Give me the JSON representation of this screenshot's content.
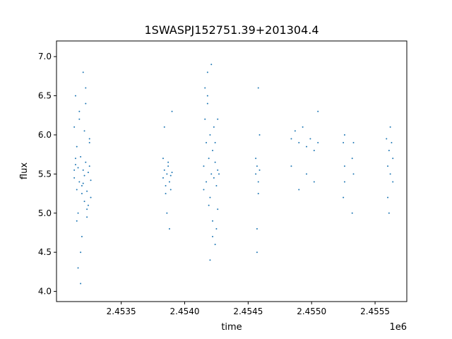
{
  "chart_data": {
    "type": "scatter",
    "title": "1SWASPJ152751.39+201304.4",
    "xlabel": "time",
    "ylabel": "flux",
    "x_offset_label": "1e6",
    "xlim": [
      2.45299,
      2.45575
    ],
    "ylim": [
      3.87,
      7.2
    ],
    "x_ticks": [
      2.4535,
      2.454,
      2.4545,
      2.455,
      2.4555
    ],
    "x_tick_labels": [
      "2.4535",
      "2.4540",
      "2.4545",
      "2.4550",
      "2.4555"
    ],
    "y_ticks": [
      4.0,
      4.5,
      5.0,
      5.5,
      6.0,
      6.5,
      7.0
    ],
    "y_tick_labels": [
      "4.0",
      "4.5",
      "5.0",
      "5.5",
      "6.0",
      "6.5",
      "7.0"
    ],
    "grid": false,
    "legend": "none",
    "marker_color": "#1f77b4",
    "series": [
      {
        "x": [
          2.45313,
          2.45314,
          2.45315,
          2.45316,
          2.45317,
          2.45318,
          2.45319,
          2.4532,
          2.45321,
          2.45322,
          2.45323,
          2.45324,
          2.45325,
          2.45326,
          2.45313,
          2.45315,
          2.45317,
          2.45319,
          2.45321,
          2.45323,
          2.45325,
          2.45314,
          2.45318,
          2.45322,
          2.45326,
          2.45316,
          2.4532,
          2.45324,
          2.45315,
          2.45321,
          2.45317,
          2.45323,
          2.45314,
          2.45319,
          2.45325,
          2.45318,
          2.45322,
          2.45316,
          2.45313,
          2.4532
        ],
        "y": [
          5.45,
          5.62,
          5.3,
          5.58,
          5.4,
          5.72,
          5.35,
          5.55,
          5.48,
          5.65,
          5.28,
          5.52,
          5.6,
          5.42,
          6.1,
          4.9,
          6.3,
          4.7,
          6.05,
          5.05,
          5.95,
          6.5,
          4.5,
          6.6,
          5.2,
          4.3,
          6.8,
          5.1,
          5.85,
          5.15,
          6.2,
          4.95,
          5.7,
          5.25,
          5.9,
          4.1,
          6.4,
          5.0,
          5.55,
          5.38
        ]
      },
      {
        "x": [
          2.45383,
          2.45384,
          2.45385,
          2.45386,
          2.45387,
          2.45388,
          2.45389,
          2.4539,
          2.45383,
          2.45385,
          2.45387,
          2.45389,
          2.45384,
          2.45388,
          2.4539,
          2.45386
        ],
        "y": [
          5.45,
          5.55,
          5.35,
          5.5,
          5.6,
          5.4,
          5.48,
          5.52,
          5.7,
          5.25,
          5.65,
          5.3,
          6.1,
          4.8,
          6.3,
          5.0
        ]
      },
      {
        "x": [
          2.45415,
          2.45416,
          2.45417,
          2.45418,
          2.45419,
          2.4542,
          2.45421,
          2.45422,
          2.45423,
          2.45424,
          2.45425,
          2.45426,
          2.45427,
          2.45416,
          2.45418,
          2.4542,
          2.45422,
          2.45424,
          2.45426,
          2.45417,
          2.45419,
          2.45421,
          2.45423,
          2.45425,
          2.45415,
          2.4542,
          2.45424,
          2.45418,
          2.45422,
          2.45426
        ],
        "y": [
          5.6,
          6.2,
          5.9,
          6.4,
          5.7,
          6.0,
          5.5,
          5.8,
          5.45,
          5.65,
          5.35,
          5.55,
          5.5,
          6.6,
          6.8,
          5.2,
          4.9,
          4.6,
          5.05,
          5.4,
          5.1,
          6.9,
          6.1,
          4.8,
          5.3,
          4.4,
          5.9,
          6.5,
          4.7,
          6.2
        ]
      },
      {
        "x": [
          2.45456,
          2.45457,
          2.45458,
          2.45459,
          2.45456,
          2.45458,
          2.45457,
          2.45459,
          2.45457,
          2.45458
        ],
        "y": [
          5.5,
          5.6,
          5.4,
          5.55,
          5.7,
          5.25,
          4.8,
          6.0,
          4.5,
          6.6
        ]
      },
      {
        "x": [
          2.45484,
          2.45487,
          2.4549,
          2.45493,
          2.45496,
          2.45499,
          2.45502,
          2.45505,
          2.45484,
          2.4549,
          2.45496,
          2.45502,
          2.45505
        ],
        "y": [
          5.95,
          6.05,
          5.9,
          6.1,
          5.85,
          5.95,
          5.8,
          5.9,
          5.6,
          5.3,
          5.5,
          5.4,
          6.3
        ]
      },
      {
        "x": [
          2.45525,
          2.45526,
          2.45532,
          2.45533,
          2.45525,
          2.45532,
          2.45526,
          2.45533,
          2.45526
        ],
        "y": [
          5.9,
          5.6,
          5.7,
          5.5,
          5.2,
          5.0,
          6.0,
          5.9,
          5.4
        ]
      },
      {
        "x": [
          2.45559,
          2.4556,
          2.45561,
          2.45562,
          2.45563,
          2.45564,
          2.4556,
          2.45562,
          2.45564,
          2.45561
        ],
        "y": [
          5.95,
          5.6,
          5.8,
          5.5,
          5.9,
          5.7,
          5.2,
          6.1,
          5.4,
          5.0
        ]
      }
    ]
  }
}
